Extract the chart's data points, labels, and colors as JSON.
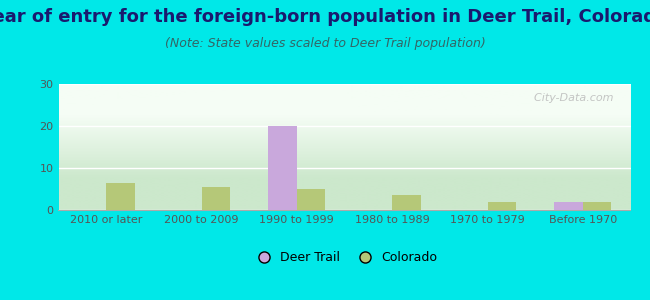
{
  "title": "Year of entry for the foreign-born population in Deer Trail, Colorado",
  "subtitle": "(Note: State values scaled to Deer Trail population)",
  "categories": [
    "2010 or later",
    "2000 to 2009",
    "1990 to 1999",
    "1980 to 1989",
    "1970 to 1979",
    "Before 1970"
  ],
  "deer_trail": [
    0,
    0,
    20,
    0,
    0,
    2
  ],
  "colorado": [
    6.5,
    5.5,
    5,
    3.5,
    2,
    2
  ],
  "deer_trail_color": "#c9a8dc",
  "colorado_color": "#b5c878",
  "ylim": [
    0,
    30
  ],
  "yticks": [
    0,
    10,
    20,
    30
  ],
  "background_outer": "#00e8e8",
  "plot_bg_top": "#f5fdf5",
  "plot_bg_bottom": "#cce8cc",
  "bar_width": 0.3,
  "title_fontsize": 13,
  "subtitle_fontsize": 9,
  "tick_fontsize": 8,
  "legend_fontsize": 9,
  "watermark": "  City-Data.com"
}
